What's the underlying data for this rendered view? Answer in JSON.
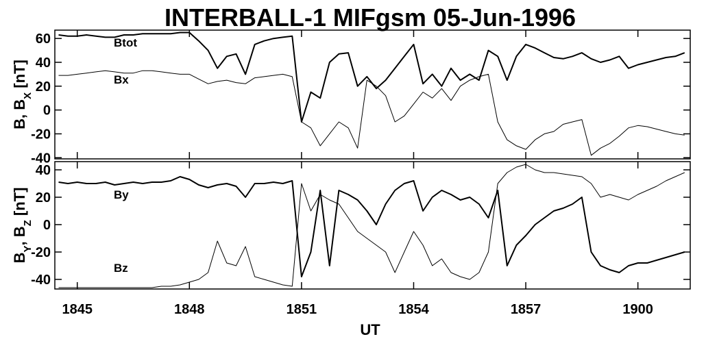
{
  "chart_data": [
    {
      "type": "line",
      "title": "INTERBALL-1 MIFgsm 05-Jun-1996",
      "ylabel_parts": [
        {
          "text": "B, B"
        },
        {
          "text": "X",
          "sub": true
        },
        {
          "text": " [nT]"
        }
      ],
      "x": [
        -0.5,
        -0.25,
        0,
        0.25,
        0.5,
        0.75,
        1,
        1.25,
        1.5,
        1.75,
        2,
        2.25,
        2.5,
        2.75,
        3,
        3.25,
        3.5,
        3.75,
        4,
        4.25,
        4.5,
        4.75,
        5,
        5.25,
        5.5,
        5.75,
        6,
        6.25,
        6.5,
        6.75,
        7,
        7.25,
        7.5,
        7.75,
        8,
        8.25,
        8.5,
        8.75,
        9,
        9.25,
        9.5,
        9.75,
        10,
        10.25,
        10.5,
        10.75,
        11,
        11.25,
        11.5,
        11.75,
        12,
        12.25,
        12.5,
        12.75,
        13,
        13.25,
        13.5,
        13.75,
        14,
        14.25,
        14.5,
        14.75,
        15,
        15.25,
        15.5,
        15.75,
        16,
        16.25
      ],
      "xlim": [
        -0.6,
        16.4
      ],
      "ylim": [
        -41,
        67
      ],
      "yticks": [
        -40,
        -20,
        0,
        20,
        40,
        60
      ],
      "series": [
        {
          "name": "Btot",
          "color": "#000000",
          "width": 2,
          "values": [
            63,
            62,
            62,
            63,
            62,
            61,
            61,
            63,
            63,
            64,
            64,
            64,
            64,
            65,
            65,
            58,
            50,
            35,
            45,
            47,
            30,
            55,
            58,
            60,
            61,
            62,
            -10,
            15,
            10,
            40,
            47,
            48,
            20,
            28,
            18,
            25,
            35,
            45,
            55,
            22,
            30,
            20,
            35,
            25,
            30,
            25,
            50,
            45,
            25,
            45,
            55,
            52,
            48,
            44,
            43,
            45,
            48,
            43,
            40,
            42,
            45,
            35,
            38,
            40,
            42,
            44,
            45,
            48
          ]
        },
        {
          "name": "Bx",
          "color": "#000000",
          "width": 1,
          "values": [
            29,
            29,
            30,
            31,
            32,
            33,
            32,
            31,
            31,
            33,
            33,
            32,
            31,
            30,
            30,
            26,
            22,
            24,
            25,
            23,
            22,
            27,
            28,
            29,
            30,
            28,
            -10,
            -15,
            -30,
            -20,
            -10,
            -15,
            -32,
            25,
            20,
            12,
            -10,
            -5,
            5,
            15,
            10,
            18,
            8,
            20,
            25,
            28,
            30,
            -10,
            -25,
            -30,
            -33,
            -25,
            -20,
            -18,
            -12,
            -10,
            -8,
            -38,
            -32,
            -28,
            -22,
            -15,
            -13,
            -14,
            -16,
            -18,
            -20,
            -21
          ]
        }
      ]
    },
    {
      "type": "line",
      "xlabel": "UT",
      "ylabel_parts": [
        {
          "text": "B"
        },
        {
          "text": "Y",
          "sub": true
        },
        {
          "text": ", B"
        },
        {
          "text": "Z",
          "sub": true
        },
        {
          "text": " [nT]"
        }
      ],
      "x": [
        -0.5,
        -0.25,
        0,
        0.25,
        0.5,
        0.75,
        1,
        1.25,
        1.5,
        1.75,
        2,
        2.25,
        2.5,
        2.75,
        3,
        3.25,
        3.5,
        3.75,
        4,
        4.25,
        4.5,
        4.75,
        5,
        5.25,
        5.5,
        5.75,
        6,
        6.25,
        6.5,
        6.75,
        7,
        7.25,
        7.5,
        7.75,
        8,
        8.25,
        8.5,
        8.75,
        9,
        9.25,
        9.5,
        9.75,
        10,
        10.25,
        10.5,
        10.75,
        11,
        11.25,
        11.5,
        11.75,
        12,
        12.25,
        12.5,
        12.75,
        13,
        13.25,
        13.5,
        13.75,
        14,
        14.25,
        14.5,
        14.75,
        15,
        15.25,
        15.5,
        15.75,
        16,
        16.25
      ],
      "xlim": [
        -0.6,
        16.4
      ],
      "ylim": [
        -47,
        46
      ],
      "yticks": [
        -40,
        -20,
        0,
        20,
        40
      ],
      "xticks": [
        {
          "value": 0,
          "label": "1845"
        },
        {
          "value": 3,
          "label": "1848"
        },
        {
          "value": 6,
          "label": "1851"
        },
        {
          "value": 9,
          "label": "1854"
        },
        {
          "value": 12,
          "label": "1857"
        },
        {
          "value": 15,
          "label": "1900"
        }
      ],
      "series": [
        {
          "name": "By",
          "color": "#000000",
          "width": 2,
          "values": [
            31,
            30,
            31,
            30,
            30,
            31,
            29,
            30,
            31,
            30,
            31,
            31,
            32,
            35,
            33,
            29,
            27,
            29,
            30,
            28,
            20,
            30,
            30,
            31,
            30,
            32,
            -38,
            -20,
            25,
            -30,
            25,
            22,
            18,
            10,
            0,
            15,
            25,
            30,
            32,
            10,
            20,
            25,
            22,
            18,
            20,
            15,
            5,
            25,
            -30,
            -15,
            -8,
            0,
            5,
            10,
            12,
            15,
            20,
            -20,
            -30,
            -33,
            -35,
            -30,
            -28,
            -28,
            -26,
            -24,
            -22,
            -20
          ]
        },
        {
          "name": "Bz",
          "color": "#000000",
          "width": 1,
          "values": [
            -46,
            -46,
            -46,
            -46,
            -46,
            -46,
            -46,
            -46,
            -46,
            -46,
            -46,
            -45,
            -45,
            -44,
            -42,
            -40,
            -35,
            -12,
            -28,
            -30,
            -16,
            -38,
            -40,
            -42,
            -44,
            -45,
            30,
            10,
            22,
            18,
            15,
            5,
            -5,
            -10,
            -15,
            -20,
            -35,
            -20,
            -5,
            -15,
            -30,
            -25,
            -35,
            -38,
            -40,
            -35,
            -20,
            30,
            38,
            42,
            44,
            40,
            38,
            38,
            37,
            36,
            35,
            30,
            20,
            22,
            20,
            18,
            22,
            25,
            28,
            32,
            35,
            38
          ]
        }
      ]
    }
  ]
}
